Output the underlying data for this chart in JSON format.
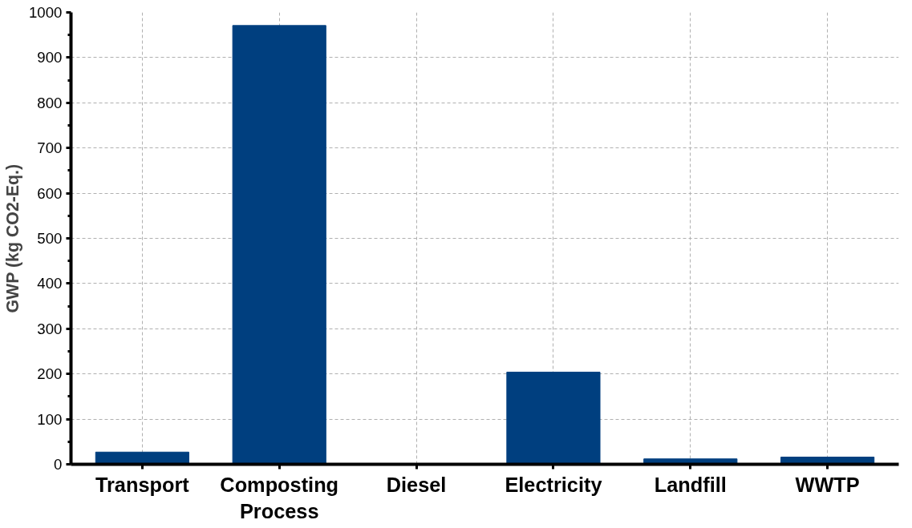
{
  "chart_data": {
    "type": "bar",
    "ylabel": "GWP (kg CO2-Eq.)",
    "categories": [
      "Transport",
      "Composting\nProcess",
      "Diesel",
      "Electricity",
      "Landfill",
      "WWTP"
    ],
    "values": [
      27,
      971,
      0,
      204,
      12,
      16
    ],
    "color": "#003f7f",
    "ylim": [
      0,
      1000
    ],
    "yticks": [
      0,
      100,
      200,
      300,
      400,
      500,
      600,
      700,
      800,
      900,
      1000
    ],
    "grid": true
  }
}
